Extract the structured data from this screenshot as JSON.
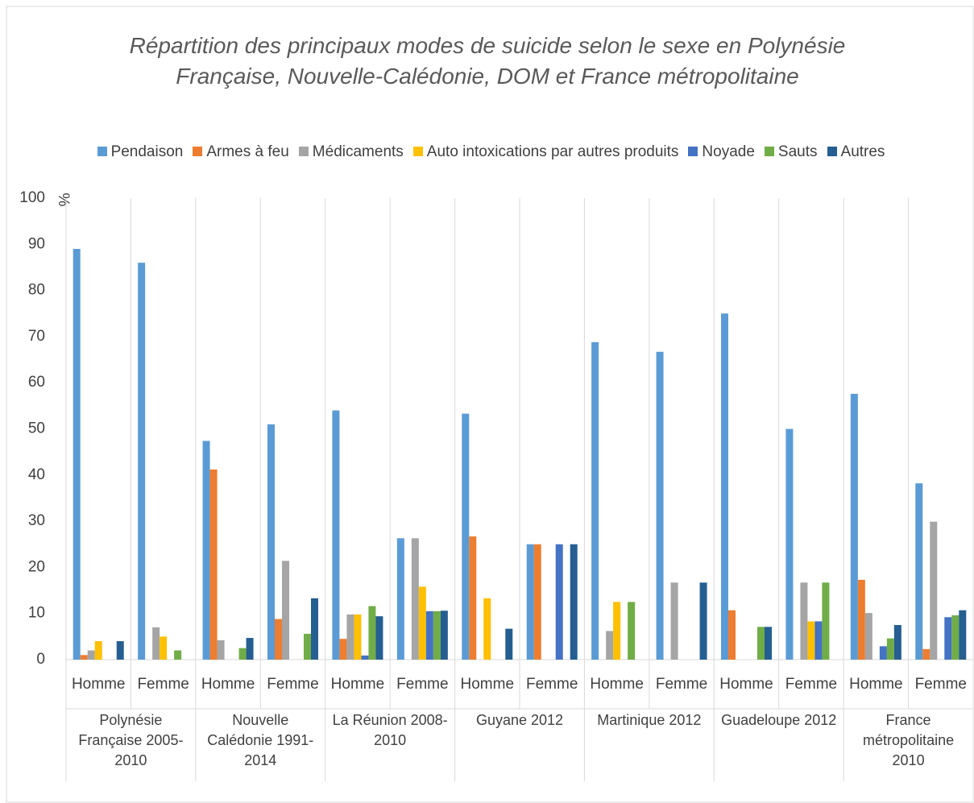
{
  "chart_data": {
    "type": "bar",
    "title": "Répartition des principaux modes de suicide selon le sexe en Polynésie Française, Nouvelle-Calédonie, DOM et France métropolitaine",
    "y_label": "%",
    "categories": [
      "Homme",
      "Femme",
      "Homme",
      "Femme",
      "Homme",
      "Femme",
      "Homme",
      "Femme",
      "Homme",
      "Femme",
      "Homme",
      "Femme",
      "Homme",
      "Femme"
    ],
    "groups": [
      "Polynésie Française 2005-2010",
      "Nouvelle Calédonie 1991-2014",
      "La Réunion 2008-2010",
      "Guyane 2012",
      "Martinique 2012",
      "Guadeloupe 2012",
      "France métropolitaine 2010"
    ],
    "series": [
      {
        "name": "Pendaison",
        "color": "#5b9bd5",
        "values": [
          89,
          86,
          47.4,
          51,
          54,
          26.3,
          53.3,
          25,
          68.8,
          66.7,
          75,
          50,
          57.6,
          38.2
        ]
      },
      {
        "name": "Armes à feu",
        "color": "#ed7d31",
        "values": [
          1,
          0,
          41.2,
          8.8,
          4.5,
          0,
          26.7,
          25,
          0,
          0,
          10.7,
          0,
          17.3,
          2.3
        ]
      },
      {
        "name": "Médicaments",
        "color": "#a5a5a5",
        "values": [
          2,
          7,
          4.2,
          21.4,
          9.8,
          26.3,
          0,
          0,
          6.2,
          16.7,
          0,
          16.7,
          10.1,
          29.9
        ]
      },
      {
        "name": "Auto intoxications par autres produits",
        "color": "#ffc000",
        "values": [
          4,
          5,
          0,
          0,
          9.8,
          15.8,
          13.3,
          0,
          12.5,
          0,
          0,
          8.3,
          0,
          0
        ]
      },
      {
        "name": "Noyade",
        "color": "#4472c4",
        "values": [
          0,
          0,
          0,
          0,
          0.9,
          10.5,
          0,
          25,
          0,
          0,
          0,
          8.3,
          2.9,
          9.2
        ]
      },
      {
        "name": "Sauts",
        "color": "#70ad47",
        "values": [
          0,
          2,
          2.5,
          5.6,
          11.6,
          10.5,
          0,
          0,
          12.5,
          0,
          7.1,
          16.7,
          4.6,
          9.6
        ]
      },
      {
        "name": "Autres",
        "color": "#255e91",
        "values": [
          4,
          0,
          4.7,
          13.3,
          9.4,
          10.6,
          6.7,
          25,
          0,
          16.7,
          7.1,
          0,
          7.5,
          10.7
        ]
      }
    ],
    "ylim": [
      0,
      100
    ],
    "yticks": [
      0,
      10,
      20,
      30,
      40,
      50,
      60,
      70,
      80,
      90,
      100
    ],
    "grid": false
  }
}
